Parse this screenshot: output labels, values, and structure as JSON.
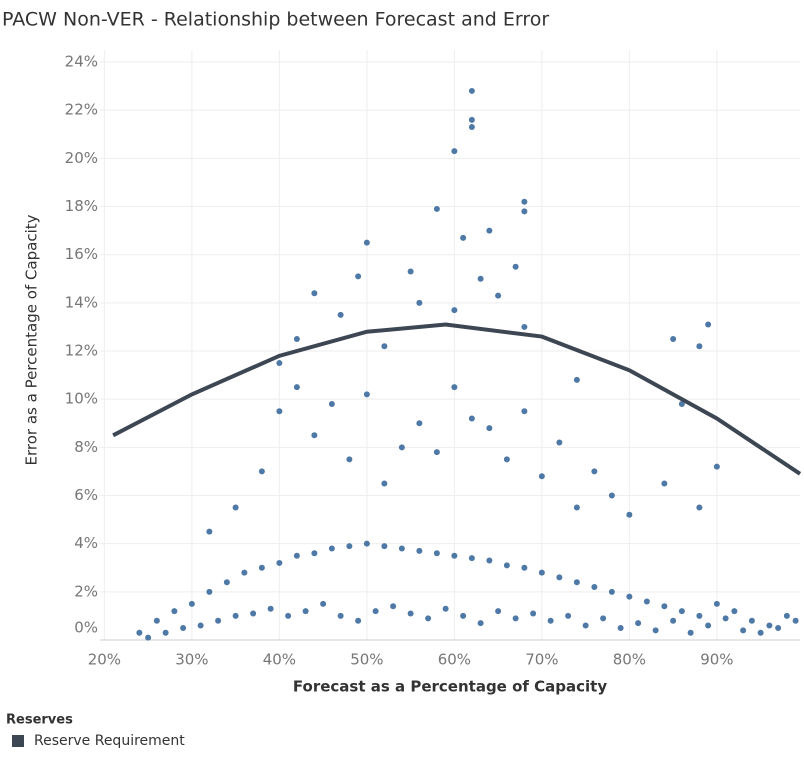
{
  "chart_data": {
    "type": "scatter",
    "title": "PACW Non-VER - Relationship between Forecast and Error",
    "x_label": "Forecast as a Percentage of Capacity",
    "y_label": "Error as a Percentage of Capacity",
    "xlim": [
      19.5,
      99.5
    ],
    "ylim": [
      0,
      24.5
    ],
    "xticks": [
      {
        "value": 20,
        "label": "20%"
      },
      {
        "value": 30,
        "label": "30%"
      },
      {
        "value": 40,
        "label": "40%"
      },
      {
        "value": 50,
        "label": "50%"
      },
      {
        "value": 60,
        "label": "60%"
      },
      {
        "value": 70,
        "label": "70%"
      },
      {
        "value": 80,
        "label": "80%"
      },
      {
        "value": 90,
        "label": "90%"
      }
    ],
    "yticks": [
      {
        "value": 0,
        "label": "0%"
      },
      {
        "value": 2,
        "label": "2%"
      },
      {
        "value": 4,
        "label": "4%"
      },
      {
        "value": 6,
        "label": "6%"
      },
      {
        "value": 8,
        "label": "8%"
      },
      {
        "value": 10,
        "label": "10%"
      },
      {
        "value": 12,
        "label": "12%"
      },
      {
        "value": 14,
        "label": "14%"
      },
      {
        "value": 16,
        "label": "16%"
      },
      {
        "value": 18,
        "label": "18%"
      },
      {
        "value": 20,
        "label": "20%"
      },
      {
        "value": 22,
        "label": "22%"
      },
      {
        "value": 24,
        "label": "24%"
      }
    ],
    "grid": true,
    "color": "#4e79a7",
    "x": [
      24,
      26,
      28,
      30,
      32,
      34,
      36,
      38,
      40,
      42,
      44,
      46,
      48,
      50,
      52,
      54,
      56,
      58,
      60,
      62,
      64,
      66,
      68,
      70,
      72,
      74,
      76,
      78,
      80,
      82,
      84,
      86,
      88,
      90,
      92,
      94,
      96,
      98,
      25,
      27,
      29,
      31,
      33,
      35,
      37,
      39,
      41,
      43,
      45,
      47,
      49,
      51,
      53,
      55,
      57,
      59,
      61,
      63,
      65,
      67,
      69,
      71,
      73,
      75,
      77,
      79,
      81,
      83,
      85,
      87,
      89,
      91,
      93,
      95,
      97,
      99,
      32,
      35,
      38,
      40,
      42,
      44,
      46,
      48,
      50,
      52,
      54,
      56,
      58,
      60,
      62,
      64,
      66,
      68,
      70,
      72,
      74,
      76,
      78,
      80,
      84,
      86,
      88,
      90,
      40,
      42,
      44,
      47,
      49,
      50,
      52,
      55,
      56,
      58,
      60,
      61,
      63,
      64,
      65,
      67,
      68,
      74,
      85,
      88,
      89,
      60,
      62,
      62,
      62,
      68,
      68
    ],
    "values": [
      0.3,
      0.8,
      1.2,
      1.5,
      2.0,
      2.4,
      2.8,
      3.0,
      3.2,
      3.5,
      3.6,
      3.8,
      3.9,
      4.0,
      3.9,
      3.8,
      3.7,
      3.6,
      3.5,
      3.4,
      3.3,
      3.1,
      3.0,
      2.8,
      2.6,
      2.4,
      2.2,
      2.0,
      1.8,
      1.6,
      1.4,
      1.2,
      1.0,
      1.5,
      1.2,
      0.8,
      0.6,
      1.0,
      0.1,
      0.3,
      0.5,
      0.6,
      0.8,
      1.0,
      1.1,
      1.3,
      1.0,
      1.2,
      1.5,
      1.0,
      0.8,
      1.2,
      1.4,
      1.1,
      0.9,
      1.3,
      1.0,
      0.7,
      1.2,
      0.9,
      1.1,
      0.8,
      1.0,
      0.6,
      0.9,
      0.5,
      0.7,
      0.4,
      0.8,
      0.3,
      0.6,
      0.9,
      0.4,
      0.3,
      0.5,
      0.8,
      4.5,
      5.5,
      7.0,
      9.5,
      10.5,
      8.5,
      9.8,
      7.5,
      10.2,
      6.5,
      8.0,
      9.0,
      7.8,
      10.5,
      9.2,
      8.8,
      7.5,
      9.5,
      6.8,
      8.2,
      5.5,
      7.0,
      6.0,
      5.2,
      6.5,
      9.8,
      5.5,
      7.2,
      11.5,
      12.5,
      14.4,
      13.5,
      15.1,
      16.5,
      12.2,
      15.3,
      14.0,
      17.9,
      13.7,
      16.7,
      15.0,
      17.0,
      14.3,
      15.5,
      13.0,
      10.8,
      12.5,
      12.2,
      13.1,
      20.3,
      22.8,
      21.6,
      21.3,
      18.2,
      17.8
    ],
    "legend_title": "Reserves",
    "series": [
      {
        "name": "Reserve Requirement",
        "color": "#3d4653",
        "x": [
          21,
          30,
          40,
          50,
          59,
          70,
          80,
          90,
          99.5
        ],
        "values": [
          8.5,
          10.2,
          11.8,
          12.8,
          13.1,
          12.6,
          11.2,
          9.2,
          6.9
        ]
      }
    ]
  }
}
